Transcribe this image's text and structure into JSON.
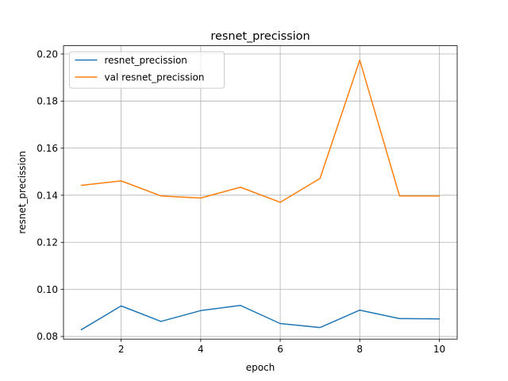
{
  "chart_data": {
    "type": "line",
    "title": "resnet_precission",
    "xlabel": "epoch",
    "ylabel": "resnet_precission",
    "x": [
      1,
      2,
      3,
      4,
      5,
      6,
      7,
      8,
      9,
      10
    ],
    "xlim": [
      0.55,
      10.45
    ],
    "ylim": [
      0.0789,
      0.2035
    ],
    "xticks": [
      2,
      4,
      6,
      8,
      10
    ],
    "xtick_labels": [
      "2",
      "4",
      "6",
      "8",
      "10"
    ],
    "yticks": [
      0.08,
      0.1,
      0.12,
      0.14,
      0.16,
      0.18,
      0.2
    ],
    "ytick_labels": [
      "0.08",
      "0.10",
      "0.12",
      "0.14",
      "0.16",
      "0.18",
      "0.20"
    ],
    "grid": true,
    "legend_position": "top-left",
    "series": [
      {
        "name": "resnet_precission",
        "color": "#1f77b4",
        "values": [
          0.0829,
          0.093,
          0.0864,
          0.091,
          0.0932,
          0.0855,
          0.0838,
          0.0912,
          0.0876,
          0.0875
        ]
      },
      {
        "name": "val resnet_precission",
        "color": "#ff7f0e",
        "values": [
          0.1442,
          0.1461,
          0.1397,
          0.1388,
          0.1434,
          0.137,
          0.1471,
          0.1974,
          0.1397,
          0.1397
        ]
      }
    ]
  }
}
